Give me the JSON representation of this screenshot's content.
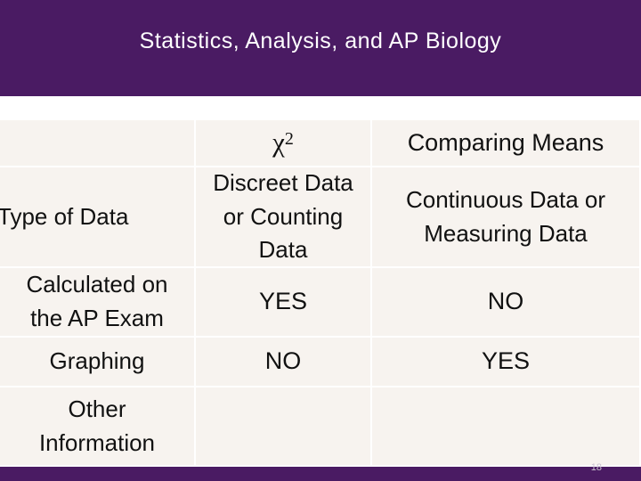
{
  "slide": {
    "title": "Statistics, Analysis, and AP Biology",
    "number": "18"
  },
  "table": {
    "headers": {
      "row_header": "",
      "chi_symbol": "χ",
      "chi_superscript": "2",
      "comparing_means": "Comparing Means"
    },
    "rows": [
      {
        "label": "Type of Data",
        "chi_square": [
          "Discreet Data",
          "or Counting",
          "Data"
        ],
        "comparing_means": [
          "Continuous Data or",
          "Measuring Data"
        ]
      },
      {
        "label": [
          "Calculated on",
          "the AP Exam"
        ],
        "chi_square": "YES",
        "comparing_means": "NO"
      },
      {
        "label": "Graphing",
        "chi_square": "NO",
        "comparing_means": "YES"
      },
      {
        "label": [
          "Other",
          "Information"
        ],
        "chi_square": "",
        "comparing_means": ""
      }
    ]
  },
  "colors": {
    "title_bar": "#4a1b63",
    "cell_background": "#f7f3ef",
    "title_text": "#ffffff"
  }
}
